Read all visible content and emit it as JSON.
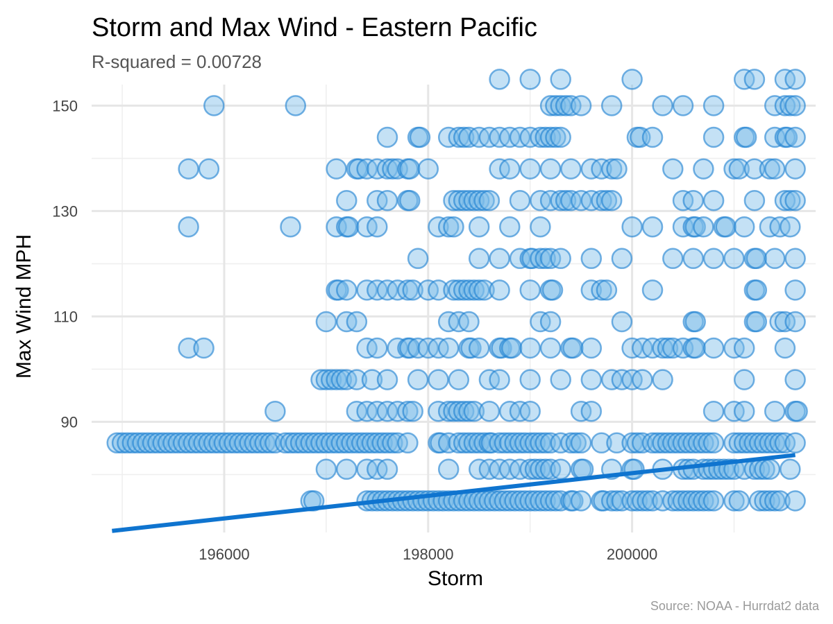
{
  "chart_data": {
    "type": "scatter",
    "title": "Storm and Max Wind - Eastern Pacific",
    "subtitle": "R-squared =  0.00728",
    "xlabel": "Storm",
    "ylabel": "Max Wind MPH",
    "caption": "Source: NOAA - Hurrdat2 data",
    "xlim": [
      194700,
      201800
    ],
    "ylim": [
      69,
      154
    ],
    "x_ticks": [
      196000,
      198000,
      200000
    ],
    "x_minor": [
      195000,
      197000,
      199000,
      201000
    ],
    "y_ticks": [
      90,
      110,
      130,
      150
    ],
    "y_minor": [
      80,
      100,
      120,
      140
    ],
    "grid": true,
    "colors": {
      "point_fill": "#7dbde8",
      "point_stroke": "#1a7fd0",
      "trend": "#0f74cf"
    },
    "trend": {
      "x": [
        194900,
        201600
      ],
      "y": [
        69.3,
        83.7
      ]
    },
    "rows": [
      {
        "y": 155,
        "x": [
          198700,
          199000,
          199300,
          200000,
          201100,
          201200,
          201500,
          201600
        ]
      },
      {
        "y": 150,
        "x": [
          195900,
          196700,
          199200,
          199250,
          199300,
          199350,
          199400,
          199500,
          199800,
          200300,
          200500,
          200800,
          201400,
          201500,
          201550,
          201600
        ]
      },
      {
        "y": 144,
        "x": [
          197600,
          197900,
          197920,
          198200,
          198300,
          198350,
          198400,
          198500,
          198600,
          198700,
          198800,
          198900,
          199000,
          199100,
          199150,
          199200,
          199250,
          199300,
          200050,
          200080,
          200200,
          200800,
          201100,
          201120,
          201400,
          201500,
          201520,
          201600
        ]
      },
      {
        "y": 138,
        "x": [
          195650,
          195850,
          197100,
          197300,
          197320,
          197400,
          197500,
          197600,
          197650,
          197700,
          197800,
          197820,
          198000,
          198700,
          198800,
          199000,
          199200,
          199400,
          199600,
          199700,
          199800,
          199850,
          200400,
          200700,
          201000,
          201050,
          201200,
          201350,
          201400,
          201600
        ]
      },
      {
        "y": 132,
        "x": [
          197200,
          197500,
          197600,
          197800,
          197820,
          198250,
          198300,
          198350,
          198400,
          198450,
          198500,
          198550,
          198600,
          198900,
          199100,
          199200,
          199300,
          199350,
          199400,
          199500,
          199600,
          199700,
          199750,
          199800,
          200500,
          200600,
          200800,
          201200,
          201500,
          201550,
          201600
        ]
      },
      {
        "y": 127,
        "x": [
          195650,
          196650,
          197100,
          197200,
          197220,
          197400,
          197500,
          198100,
          198200,
          198250,
          198500,
          198800,
          199100,
          200000,
          200200,
          200500,
          200600,
          200620,
          200700,
          200900,
          200920,
          201100,
          201350,
          201450,
          201550
        ]
      },
      {
        "y": 121,
        "x": [
          197900,
          198500,
          198700,
          198900,
          199000,
          199020,
          199100,
          199150,
          199200,
          199300,
          199600,
          199900,
          200400,
          200600,
          200800,
          201000,
          201200,
          201220,
          201400,
          201600
        ]
      },
      {
        "y": 115,
        "x": [
          197100,
          197120,
          197200,
          197400,
          197500,
          197600,
          197700,
          197800,
          197850,
          198000,
          198100,
          198250,
          198300,
          198350,
          198400,
          198450,
          198500,
          198550,
          198700,
          199000,
          199200,
          199220,
          199600,
          199700,
          199750,
          200200,
          201200,
          201220,
          201600
        ]
      },
      {
        "y": 109,
        "x": [
          197000,
          197200,
          197300,
          198200,
          198300,
          198400,
          199100,
          199200,
          199900,
          200600,
          200620,
          201200,
          201220,
          201450,
          201500,
          201600
        ]
      },
      {
        "y": 104,
        "x": [
          195650,
          195800,
          197400,
          197500,
          197700,
          197800,
          197820,
          197900,
          198000,
          198100,
          198200,
          198400,
          198420,
          198500,
          198700,
          198720,
          198800,
          198820,
          199000,
          199200,
          199400,
          199420,
          199600,
          200000,
          200100,
          200200,
          200300,
          200350,
          200400,
          200500,
          200600,
          200620,
          200800,
          201000,
          201100,
          201500
        ]
      },
      {
        "y": 98,
        "x": [
          196950,
          197000,
          197050,
          197100,
          197150,
          197200,
          197300,
          197450,
          197600,
          197900,
          198100,
          198300,
          198600,
          198700,
          199000,
          199300,
          199600,
          199800,
          199900,
          200000,
          200100,
          200300,
          201100,
          201600
        ]
      },
      {
        "y": 92,
        "x": [
          196500,
          197300,
          197400,
          197500,
          197600,
          197700,
          197800,
          197850,
          198100,
          198200,
          198250,
          198300,
          198350,
          198400,
          198450,
          198600,
          198800,
          198900,
          199000,
          199500,
          199600,
          200800,
          201000,
          201100,
          201400,
          201600,
          201620
        ]
      },
      {
        "y": 86,
        "x": [
          194950,
          195000,
          195050,
          195100,
          195150,
          195200,
          195250,
          195300,
          195350,
          195400,
          195450,
          195500,
          195550,
          195600,
          195650,
          195700,
          195750,
          195800,
          195850,
          195900,
          195950,
          196000,
          196050,
          196100,
          196150,
          196200,
          196250,
          196300,
          196350,
          196400,
          196450,
          196500,
          196600,
          196650,
          196700,
          196750,
          196800,
          196850,
          196900,
          196950,
          197000,
          197050,
          197100,
          197150,
          197200,
          197250,
          197300,
          197350,
          197400,
          197450,
          197500,
          197550,
          197600,
          197650,
          197700,
          197800,
          198100,
          198120,
          198200,
          198300,
          198350,
          198400,
          198450,
          198500,
          198550,
          198600,
          198620,
          198700,
          198750,
          198800,
          198850,
          198900,
          198950,
          199000,
          199050,
          199100,
          199150,
          199200,
          199300,
          199400,
          199450,
          199500,
          199700,
          199850,
          200000,
          200050,
          200100,
          200200,
          200250,
          200300,
          200350,
          200400,
          200450,
          200500,
          200550,
          200600,
          200650,
          200700,
          200750,
          200800,
          201000,
          201050,
          201100,
          201150,
          201200,
          201250,
          201300,
          201350,
          201400,
          201450,
          201500,
          201600
        ]
      },
      {
        "y": 81,
        "x": [
          197000,
          197200,
          197400,
          197500,
          197600,
          198200,
          198500,
          198600,
          198700,
          198800,
          198900,
          199000,
          199050,
          199100,
          199150,
          199200,
          199300,
          199500,
          199520,
          199800,
          200000,
          200020,
          200300,
          200500,
          200550,
          200600,
          200700,
          200750,
          200800,
          200850,
          200900,
          200950,
          201000,
          201100,
          201200,
          201250,
          201300,
          201350,
          201550
        ]
      },
      {
        "y": 75,
        "x": [
          196850,
          196880,
          197400,
          197450,
          197500,
          197550,
          197600,
          197650,
          197700,
          197750,
          197800,
          197850,
          197900,
          197950,
          198000,
          198050,
          198100,
          198150,
          198200,
          198250,
          198300,
          198350,
          198400,
          198450,
          198500,
          198550,
          198600,
          198650,
          198700,
          198750,
          198800,
          198850,
          198900,
          198950,
          199000,
          199050,
          199100,
          199150,
          199200,
          199250,
          199300,
          199400,
          199420,
          199500,
          199700,
          199720,
          199800,
          199850,
          199900,
          200000,
          200050,
          200100,
          200150,
          200200,
          200300,
          200400,
          200450,
          200500,
          200550,
          200600,
          200650,
          200700,
          200750,
          200800,
          201000,
          201050,
          201250,
          201300,
          201350,
          201400,
          201450,
          201600
        ]
      }
    ]
  }
}
